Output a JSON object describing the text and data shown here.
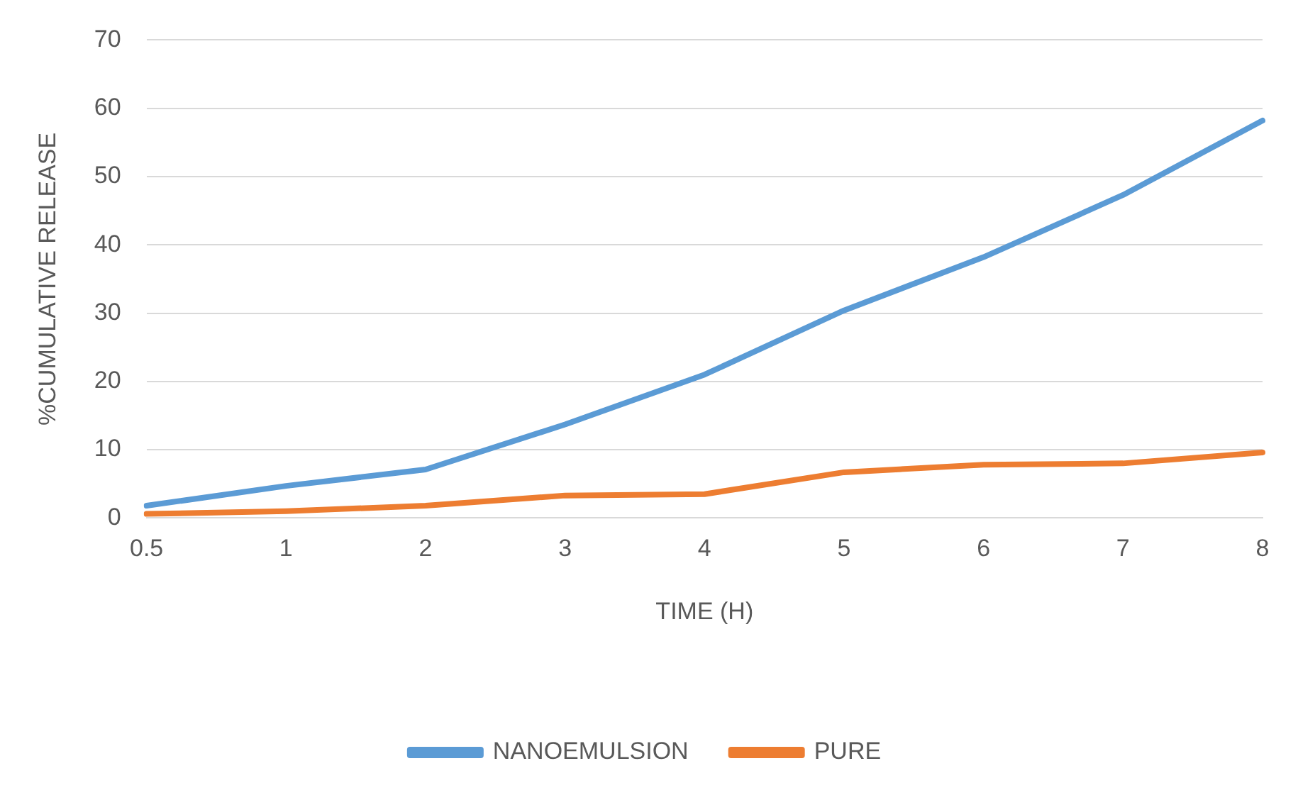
{
  "chart_data": {
    "type": "line",
    "xlabel": "TIME (H)",
    "ylabel": "%CUMULATIVE RELEASE",
    "categories": [
      "0.5",
      "1",
      "2",
      "3",
      "4",
      "5",
      "6",
      "7",
      "8"
    ],
    "series": [
      {
        "name": "NANOEMULSION",
        "color": "#5b9bd5",
        "values": [
          1.8,
          4.7,
          7.1,
          13.7,
          21,
          30.4,
          38.2,
          47.3,
          58.2
        ]
      },
      {
        "name": "PURE",
        "color": "#ed7d31",
        "values": [
          0.6,
          1.0,
          1.8,
          3.3,
          3.5,
          6.7,
          7.8,
          8.0,
          9.6
        ]
      }
    ],
    "ylim": [
      0,
      70
    ],
    "yticks": [
      0,
      10,
      20,
      30,
      40,
      50,
      60,
      70
    ],
    "grid": "y",
    "legend": "bottom",
    "marker": "none",
    "line_style": "solid"
  }
}
